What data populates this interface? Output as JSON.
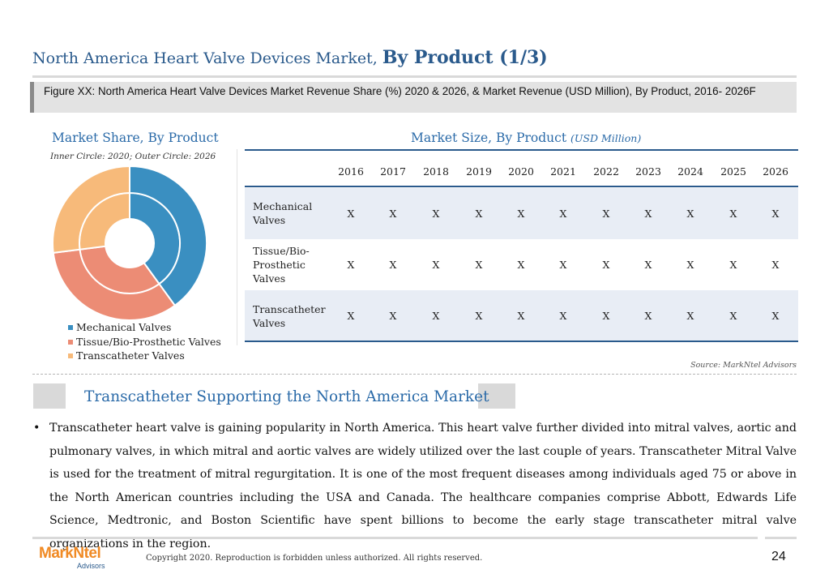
{
  "header": {
    "title_regular": "North America Heart Valve Devices Market, ",
    "title_bold": "By Product (1/3)"
  },
  "figure_caption": "Figure XX: North America Heart Valve Devices Market Revenue Share (%) 2020 & 2026, & Market Revenue (USD Million), By Product, 2016- 2026F",
  "market_share": {
    "title": "Market Share, By Product",
    "note": "Inner Circle: 2020; Outer Circle: 2026",
    "legend": [
      {
        "label": "Mechanical Valves",
        "color": "#3a8fc1"
      },
      {
        "label": "Tissue/Bio-Prosthetic Valves",
        "color": "#ec8c75"
      },
      {
        "label": "Transcatheter Valves",
        "color": "#f7ba7a"
      }
    ]
  },
  "chart_data": {
    "type": "pie",
    "categories": [
      "Mechanical Valves",
      "Tissue/Bio-Prosthetic Valves",
      "Transcatheter Valves"
    ],
    "series": [
      {
        "name": "2020",
        "values": [
          40,
          33,
          27
        ]
      },
      {
        "name": "2026",
        "values": [
          40,
          33,
          27
        ]
      }
    ],
    "colors": [
      "#3a8fc1",
      "#ec8c75",
      "#f7ba7a"
    ]
  },
  "market_size": {
    "title": "Market Size, By Product ",
    "unit": "(USD Million)",
    "years": [
      "2016",
      "2017",
      "2018",
      "2019",
      "2020",
      "2021",
      "2022",
      "2023",
      "2024",
      "2025",
      "2026"
    ],
    "rows": [
      {
        "label": "Mechanical Valves",
        "values": [
          "X",
          "X",
          "X",
          "X",
          "X",
          "X",
          "X",
          "X",
          "X",
          "X",
          "X"
        ]
      },
      {
        "label": "Tissue/Bio-Prosthetic Valves",
        "values": [
          "X",
          "X",
          "X",
          "X",
          "X",
          "X",
          "X",
          "X",
          "X",
          "X",
          "X"
        ]
      },
      {
        "label": "Transcatheter Valves",
        "values": [
          "X",
          "X",
          "X",
          "X",
          "X",
          "X",
          "X",
          "X",
          "X",
          "X",
          "X"
        ]
      }
    ]
  },
  "source": "Source: MarkNtel Advisors",
  "section": {
    "title": "Transcatheter Supporting the North America Market",
    "bullet": "•",
    "paragraph": "Transcatheter heart valve is gaining popularity in North America. This heart valve further divided into mitral valves, aortic and pulmonary valves, in which mitral and aortic valves are widely utilized over the last couple of years. Transcatheter Mitral Valve is used for the treatment of mitral regurgitation. It is one of the most frequent diseases among individuals aged 75 or above in the North American countries including the USA and Canada. The healthcare companies comprise Abbott, Edwards Life Science, Medtronic, and Boston Scientific have spent billions to become the early stage transcatheter mitral valve organizations in the region."
  },
  "footer": {
    "logo_mark": "Mark",
    "logo_ntel": "Ntel",
    "logo_sub": "Advisors",
    "copyright": "Copyright 2020. Reproduction is forbidden unless authorized. All rights reserved.",
    "page_number": "24"
  }
}
